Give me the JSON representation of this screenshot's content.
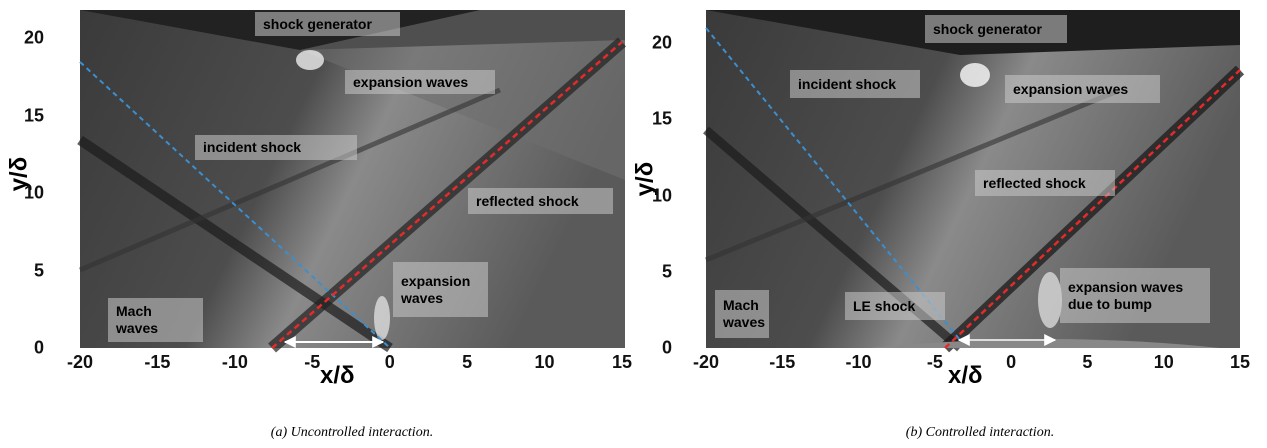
{
  "panels": [
    {
      "xticks": [
        "-20",
        "-15",
        "-10",
        "-5",
        "0",
        "5",
        "10",
        "15"
      ],
      "yticks": [
        "0",
        "5",
        "10",
        "15",
        "20"
      ],
      "xlabel": "x/δ",
      "ylabel": "y/δ",
      "annotations": [
        "shock generator",
        "expansion waves",
        "incident shock",
        "reflected shock",
        "expansion waves",
        "Mach waves"
      ],
      "caption": "(a) Uncontrolled interaction."
    },
    {
      "xticks": [
        "-20",
        "-15",
        "-10",
        "-5",
        "0",
        "5",
        "10",
        "15"
      ],
      "yticks": [
        "0",
        "5",
        "10",
        "15",
        "20"
      ],
      "xlabel": "x/δ",
      "ylabel": "y/δ",
      "annotations": [
        "shock generator",
        "incident shock",
        "expansion waves",
        "reflected shock",
        "expansion waves due to bump",
        "Mach waves",
        "LE shock"
      ],
      "caption": "(b) Controlled interaction."
    }
  ]
}
